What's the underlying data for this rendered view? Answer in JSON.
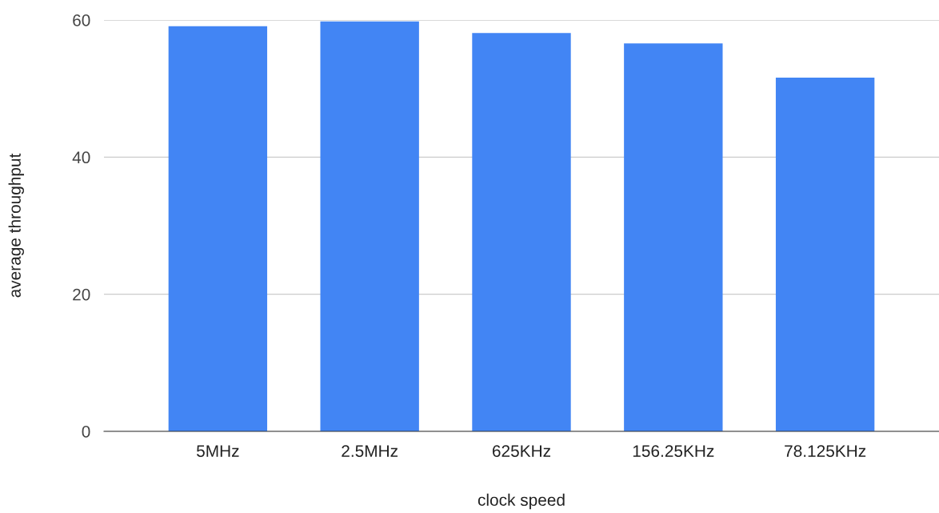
{
  "chart_data": {
    "type": "bar",
    "xlabel": "clock speed",
    "ylabel": "average throughput",
    "categories": [
      "5MHz",
      "2.5MHz",
      "625KHz",
      "156.25KHz",
      "78.125KHz"
    ],
    "values": [
      59.1,
      59.8,
      58.1,
      56.6,
      51.6
    ],
    "color": "#4285f4",
    "ylim": [
      0,
      60
    ],
    "yticks": [
      0,
      20,
      40,
      60
    ],
    "grid": "y"
  }
}
